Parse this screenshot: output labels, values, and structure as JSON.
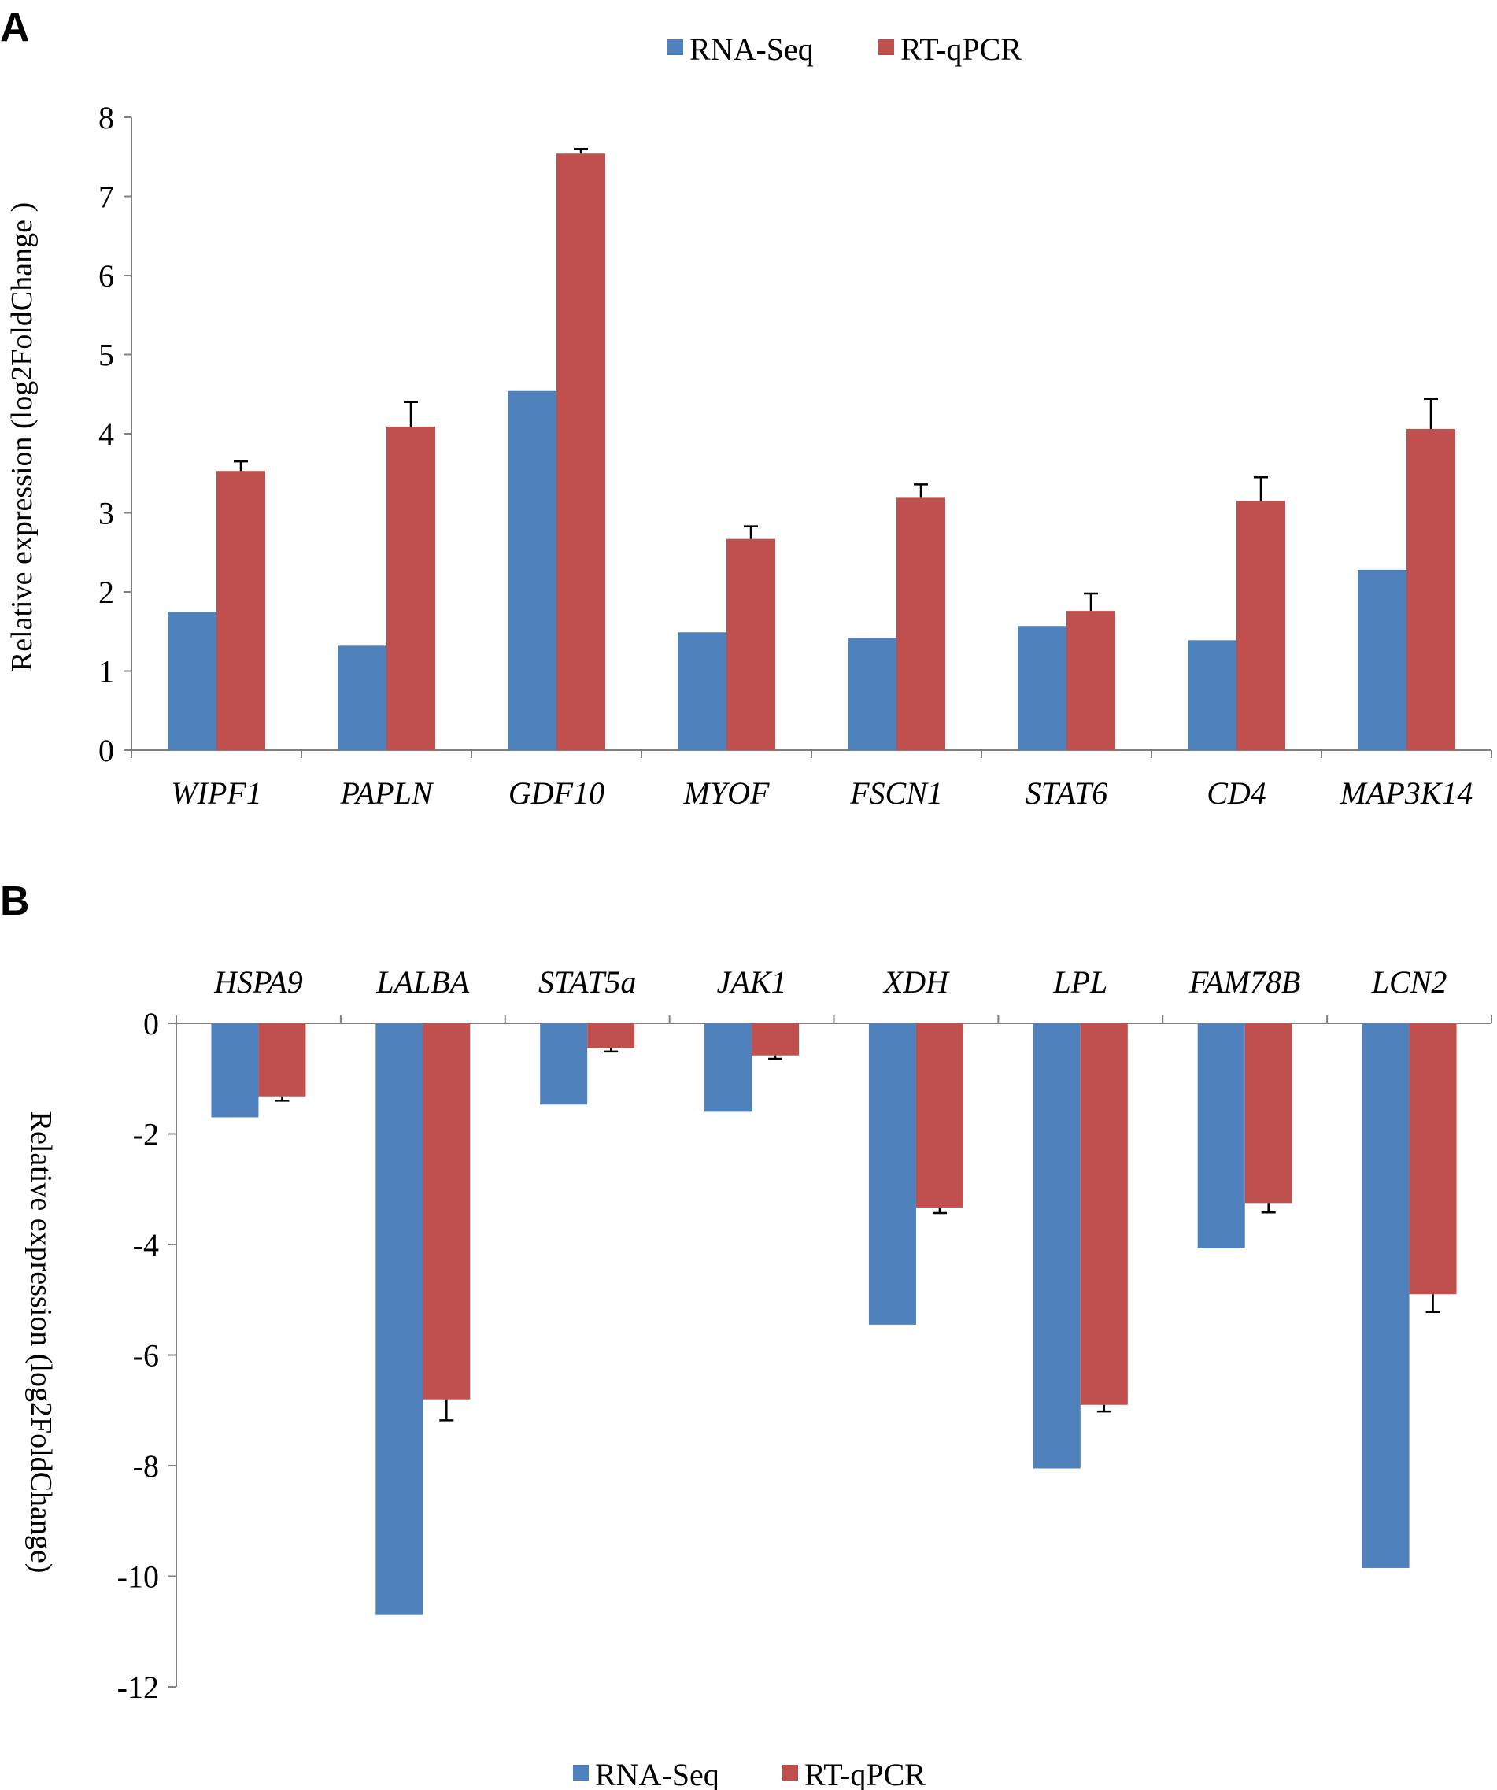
{
  "colors": {
    "rna_seq": "#4F81BD",
    "rt_qpcr": "#C0504D",
    "axis": "#808080",
    "text": "#000000"
  },
  "chart_data": [
    {
      "panel": "A",
      "type": "bar",
      "ylabel": "Relative expression (log2FoldChange )",
      "ylim": [
        0,
        8
      ],
      "yticks": [
        0,
        1,
        2,
        3,
        4,
        5,
        6,
        7,
        8
      ],
      "legend": {
        "position": "top",
        "entries": [
          "RNA-Seq",
          "RT-qPCR"
        ]
      },
      "categories": [
        "WIPF1",
        "PAPLN",
        "GDF10",
        "MYOF",
        "FSCN1",
        "STAT6",
        "CD4",
        "MAP3K14"
      ],
      "series": [
        {
          "name": "RNA-Seq",
          "values": [
            1.75,
            1.32,
            4.54,
            1.49,
            1.42,
            1.57,
            1.39,
            2.28
          ]
        },
        {
          "name": "RT-qPCR",
          "values": [
            3.53,
            4.09,
            7.54,
            2.67,
            3.19,
            1.76,
            3.15,
            4.06
          ],
          "errors": [
            0.12,
            0.31,
            0.06,
            0.16,
            0.17,
            0.22,
            0.3,
            0.38
          ]
        }
      ]
    },
    {
      "panel": "B",
      "type": "bar",
      "ylabel": "Relative expression (log2FoldChange)",
      "ylim": [
        -12,
        0
      ],
      "yticks": [
        0,
        -2,
        -4,
        -6,
        -8,
        -10,
        -12
      ],
      "legend": {
        "position": "bottom",
        "entries": [
          "RNA-Seq",
          "RT-qPCR"
        ]
      },
      "categories": [
        "HSPA9",
        "LALBA",
        "STAT5a",
        "JAK1",
        "XDH",
        "LPL",
        "FAM78B",
        "LCN2"
      ],
      "series": [
        {
          "name": "RNA-Seq",
          "values": [
            -1.7,
            -10.7,
            -1.47,
            -1.6,
            -5.45,
            -8.05,
            -4.07,
            -9.85
          ]
        },
        {
          "name": "RT-qPCR",
          "values": [
            -1.32,
            -6.8,
            -0.45,
            -0.58,
            -3.33,
            -6.9,
            -3.25,
            -4.9
          ],
          "errors": [
            0.08,
            0.38,
            0.06,
            0.06,
            0.1,
            0.12,
            0.17,
            0.32
          ]
        }
      ]
    }
  ]
}
